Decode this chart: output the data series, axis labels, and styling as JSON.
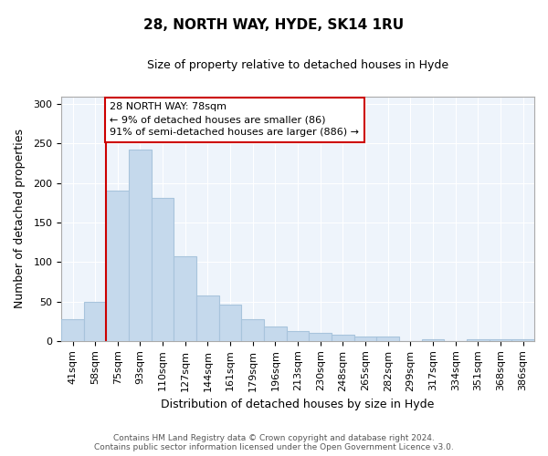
{
  "title": "28, NORTH WAY, HYDE, SK14 1RU",
  "subtitle": "Size of property relative to detached houses in Hyde",
  "xlabel": "Distribution of detached houses by size in Hyde",
  "ylabel": "Number of detached properties",
  "bar_labels": [
    "41sqm",
    "58sqm",
    "75sqm",
    "93sqm",
    "110sqm",
    "127sqm",
    "144sqm",
    "161sqm",
    "179sqm",
    "196sqm",
    "213sqm",
    "230sqm",
    "248sqm",
    "265sqm",
    "282sqm",
    "299sqm",
    "317sqm",
    "334sqm",
    "351sqm",
    "368sqm",
    "386sqm"
  ],
  "bar_values": [
    28,
    50,
    190,
    242,
    181,
    107,
    57,
    46,
    28,
    18,
    12,
    10,
    8,
    5,
    5,
    0,
    2,
    0,
    2,
    2,
    2
  ],
  "bar_color_normal": "#c5d9ec",
  "bar_color_edge": "#a8c4dc",
  "red_line_bar_index": 2,
  "annotation_title": "28 NORTH WAY: 78sqm",
  "annotation_line1": "← 9% of detached houses are smaller (86)",
  "annotation_line2": "91% of semi-detached houses are larger (886) →",
  "annotation_box_color": "#ffffff",
  "annotation_box_edge": "#cc0000",
  "red_line_color": "#cc0000",
  "ylim": [
    0,
    310
  ],
  "yticks": [
    0,
    50,
    100,
    150,
    200,
    250,
    300
  ],
  "footer1": "Contains HM Land Registry data © Crown copyright and database right 2024.",
  "footer2": "Contains public sector information licensed under the Open Government Licence v3.0.",
  "plot_bg_color": "#eef4fb",
  "fig_bg_color": "#ffffff",
  "grid_color": "#ffffff",
  "title_fontsize": 11,
  "subtitle_fontsize": 9,
  "axis_label_fontsize": 9,
  "tick_fontsize": 8,
  "footer_fontsize": 6.5
}
